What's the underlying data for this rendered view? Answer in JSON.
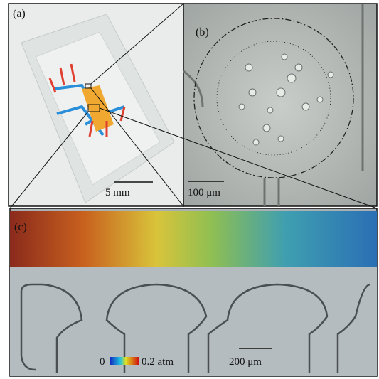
{
  "panels": [
    {
      "label": "(a)",
      "scale_bar": "5 mm"
    },
    {
      "label": "(b)",
      "scale_bar": "100 μm"
    },
    {
      "label": "(c)",
      "scale_bar": "200 μm",
      "colorbar": {
        "min_label": "0",
        "max_label": "0.2 atm"
      }
    }
  ]
}
